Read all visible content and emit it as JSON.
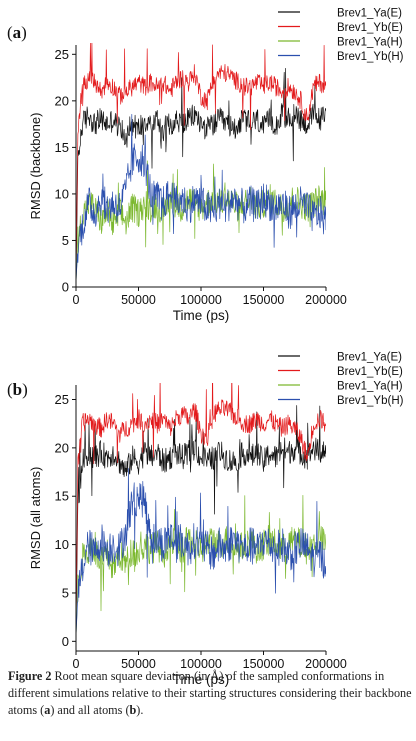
{
  "chart_data": [
    {
      "type": "line",
      "panel_label": "a",
      "title": "",
      "xlabel": "Time (ps)",
      "ylabel": "RMSD (backbone)",
      "xlim": [
        0,
        200000
      ],
      "ylim": [
        0,
        26
      ],
      "xticks": [
        0,
        50000,
        100000,
        150000,
        200000
      ],
      "yticks": [
        0,
        5,
        10,
        15,
        20,
        25
      ],
      "legend_position": "top-right",
      "grid": false,
      "series": [
        {
          "name": "Brev1_Ya(E)",
          "color": "#111111",
          "x": [
            0,
            1500,
            5000,
            10000,
            15000,
            20000,
            25000,
            30000,
            35000,
            40000,
            45000,
            50000,
            55000,
            60000,
            65000,
            70000,
            75000,
            80000,
            85000,
            90000,
            95000,
            100000,
            105000,
            110000,
            115000,
            120000,
            125000,
            130000,
            135000,
            140000,
            145000,
            150000,
            155000,
            160000,
            165000,
            170000,
            175000,
            180000,
            185000,
            190000,
            195000,
            200000
          ],
          "values": [
            1.0,
            13.5,
            17.5,
            18.5,
            17.5,
            18.0,
            17.5,
            18.0,
            17.0,
            16.0,
            17.5,
            17.0,
            18.0,
            17.5,
            18.0,
            17.0,
            17.5,
            18.0,
            17.5,
            18.0,
            18.5,
            17.5,
            17.0,
            17.5,
            18.0,
            17.5,
            17.0,
            17.5,
            18.0,
            17.5,
            18.0,
            17.0,
            18.0,
            17.5,
            18.5,
            18.0,
            18.5,
            18.0,
            17.5,
            18.5,
            18.0,
            18.5
          ]
        },
        {
          "name": "Brev1_Yb(E)",
          "color": "#e31a1c",
          "x": [
            0,
            1500,
            5000,
            10000,
            15000,
            20000,
            25000,
            30000,
            35000,
            40000,
            45000,
            50000,
            55000,
            60000,
            65000,
            70000,
            75000,
            80000,
            85000,
            90000,
            95000,
            100000,
            105000,
            110000,
            115000,
            120000,
            125000,
            130000,
            135000,
            140000,
            145000,
            150000,
            155000,
            160000,
            165000,
            170000,
            175000,
            180000,
            185000,
            190000,
            195000,
            200000
          ],
          "values": [
            1.0,
            17.0,
            21.5,
            22.5,
            22.0,
            21.0,
            22.0,
            21.5,
            20.5,
            21.0,
            21.5,
            22.0,
            21.5,
            22.0,
            21.5,
            22.0,
            21.0,
            22.0,
            22.5,
            22.0,
            23.0,
            20.5,
            20.0,
            22.5,
            23.0,
            23.0,
            22.5,
            22.0,
            21.5,
            21.5,
            22.0,
            21.5,
            22.0,
            21.5,
            21.0,
            21.5,
            21.0,
            20.0,
            18.0,
            21.5,
            22.0,
            21.5
          ]
        },
        {
          "name": "Brev1_Ya(H)",
          "color": "#7cb82f",
          "x": [
            0,
            1500,
            5000,
            10000,
            15000,
            20000,
            25000,
            30000,
            35000,
            40000,
            45000,
            50000,
            55000,
            60000,
            65000,
            70000,
            75000,
            80000,
            85000,
            90000,
            95000,
            100000,
            105000,
            110000,
            115000,
            120000,
            125000,
            130000,
            135000,
            140000,
            145000,
            150000,
            155000,
            160000,
            165000,
            170000,
            175000,
            180000,
            185000,
            190000,
            195000,
            200000
          ],
          "values": [
            0.5,
            5.0,
            7.5,
            9.0,
            8.5,
            7.0,
            8.0,
            6.5,
            8.0,
            7.0,
            8.5,
            8.0,
            9.0,
            8.5,
            9.0,
            8.0,
            9.5,
            9.0,
            8.5,
            9.5,
            9.0,
            8.5,
            9.0,
            9.5,
            9.0,
            9.5,
            9.0,
            8.5,
            9.0,
            9.5,
            8.5,
            9.0,
            9.5,
            9.0,
            8.5,
            9.0,
            9.5,
            9.0,
            8.5,
            9.0,
            9.5,
            9.0
          ]
        },
        {
          "name": "Brev1_Yb(H)",
          "color": "#2b4fae",
          "x": [
            0,
            1500,
            5000,
            10000,
            15000,
            20000,
            25000,
            30000,
            35000,
            40000,
            45000,
            50000,
            55000,
            60000,
            65000,
            70000,
            75000,
            80000,
            85000,
            90000,
            95000,
            100000,
            105000,
            110000,
            115000,
            120000,
            125000,
            130000,
            135000,
            140000,
            145000,
            150000,
            155000,
            160000,
            165000,
            170000,
            175000,
            180000,
            185000,
            190000,
            195000,
            200000
          ],
          "values": [
            0.5,
            4.5,
            6.5,
            9.0,
            8.0,
            9.5,
            8.5,
            9.0,
            8.5,
            10.5,
            13.5,
            14.0,
            13.5,
            10.0,
            9.5,
            9.0,
            10.0,
            9.0,
            9.5,
            8.5,
            9.5,
            9.0,
            8.5,
            8.0,
            9.0,
            8.5,
            9.5,
            9.0,
            8.5,
            9.0,
            8.5,
            9.5,
            9.0,
            8.5,
            9.0,
            8.0,
            8.5,
            9.0,
            8.5,
            7.5,
            8.0,
            7.0
          ]
        }
      ]
    },
    {
      "type": "line",
      "panel_label": "b",
      "title": "",
      "xlabel": "Time (ps)",
      "ylabel": "RMSD (all atoms)",
      "xlim": [
        0,
        200000
      ],
      "ylim": [
        -1,
        26.5
      ],
      "xticks": [
        0,
        50000,
        100000,
        150000,
        200000
      ],
      "yticks": [
        0,
        5,
        10,
        15,
        20,
        25
      ],
      "legend_position": "top-right",
      "grid": false,
      "series": [
        {
          "name": "Brev1_Ya(E)",
          "color": "#111111",
          "x": [
            0,
            1500,
            5000,
            10000,
            15000,
            20000,
            25000,
            30000,
            35000,
            40000,
            45000,
            50000,
            55000,
            60000,
            65000,
            70000,
            75000,
            80000,
            85000,
            90000,
            95000,
            100000,
            105000,
            110000,
            115000,
            120000,
            125000,
            130000,
            135000,
            140000,
            145000,
            150000,
            155000,
            160000,
            165000,
            170000,
            175000,
            180000,
            185000,
            190000,
            195000,
            200000
          ],
          "values": [
            1.5,
            14.0,
            18.5,
            19.5,
            19.0,
            19.5,
            19.0,
            19.5,
            18.5,
            17.5,
            19.0,
            18.5,
            19.5,
            19.0,
            19.5,
            18.5,
            19.0,
            19.5,
            19.0,
            19.5,
            20.0,
            19.0,
            18.5,
            19.0,
            19.5,
            19.0,
            18.5,
            19.0,
            19.5,
            19.0,
            19.5,
            18.5,
            19.5,
            19.0,
            20.0,
            19.5,
            20.0,
            19.5,
            19.0,
            20.0,
            19.5,
            20.0
          ]
        },
        {
          "name": "Brev1_Yb(E)",
          "color": "#e31a1c",
          "x": [
            0,
            1500,
            5000,
            10000,
            15000,
            20000,
            25000,
            30000,
            35000,
            40000,
            45000,
            50000,
            55000,
            60000,
            65000,
            70000,
            75000,
            80000,
            85000,
            90000,
            95000,
            100000,
            105000,
            110000,
            115000,
            120000,
            125000,
            130000,
            135000,
            140000,
            145000,
            150000,
            155000,
            160000,
            165000,
            170000,
            175000,
            180000,
            185000,
            190000,
            195000,
            200000
          ],
          "values": [
            1.5,
            18.0,
            22.5,
            23.0,
            22.5,
            22.0,
            23.0,
            22.5,
            21.5,
            22.0,
            22.5,
            23.0,
            22.5,
            23.0,
            22.5,
            23.0,
            22.0,
            23.0,
            23.5,
            23.0,
            24.0,
            21.5,
            21.0,
            23.5,
            24.0,
            24.0,
            23.5,
            23.0,
            22.5,
            22.5,
            23.0,
            22.5,
            23.0,
            22.5,
            22.0,
            22.5,
            22.0,
            21.0,
            19.0,
            22.5,
            23.0,
            22.5
          ]
        },
        {
          "name": "Brev1_Ya(H)",
          "color": "#7cb82f",
          "x": [
            0,
            1500,
            5000,
            10000,
            15000,
            20000,
            25000,
            30000,
            35000,
            40000,
            45000,
            50000,
            55000,
            60000,
            65000,
            70000,
            75000,
            80000,
            85000,
            90000,
            95000,
            100000,
            105000,
            110000,
            115000,
            120000,
            125000,
            130000,
            135000,
            140000,
            145000,
            150000,
            155000,
            160000,
            165000,
            170000,
            175000,
            180000,
            185000,
            190000,
            195000,
            200000
          ],
          "values": [
            0.5,
            5.5,
            8.5,
            10.0,
            9.5,
            8.0,
            9.0,
            7.5,
            9.0,
            8.0,
            9.5,
            9.0,
            10.0,
            9.5,
            10.0,
            9.0,
            10.5,
            10.0,
            9.5,
            10.5,
            10.0,
            9.5,
            10.0,
            10.5,
            10.0,
            10.5,
            10.0,
            9.5,
            10.0,
            10.5,
            9.5,
            10.0,
            10.5,
            10.0,
            9.5,
            10.0,
            10.5,
            10.0,
            9.5,
            10.0,
            10.5,
            10.0
          ]
        },
        {
          "name": "Brev1_Yb(H)",
          "color": "#2b4fae",
          "x": [
            0,
            1500,
            5000,
            10000,
            15000,
            20000,
            25000,
            30000,
            35000,
            40000,
            45000,
            50000,
            55000,
            60000,
            65000,
            70000,
            75000,
            80000,
            85000,
            90000,
            95000,
            100000,
            105000,
            110000,
            115000,
            120000,
            125000,
            130000,
            135000,
            140000,
            145000,
            150000,
            155000,
            160000,
            165000,
            170000,
            175000,
            180000,
            185000,
            190000,
            195000,
            200000
          ],
          "values": [
            0.5,
            5.0,
            7.5,
            10.0,
            9.0,
            10.5,
            9.5,
            10.0,
            9.5,
            11.5,
            14.5,
            15.0,
            14.5,
            11.0,
            10.5,
            10.0,
            11.0,
            10.0,
            10.5,
            9.5,
            10.5,
            10.0,
            9.5,
            9.0,
            10.0,
            9.5,
            10.5,
            10.0,
            9.5,
            10.0,
            9.5,
            10.5,
            10.0,
            9.5,
            10.0,
            9.0,
            9.5,
            10.0,
            9.5,
            8.5,
            9.0,
            8.0
          ]
        }
      ]
    }
  ],
  "caption": {
    "lead": "Figure 2",
    "text_1": "  Root mean square deviation (in Å) of the sampled conformations in different simulations relative to their starting structures considering their backbone atoms (",
    "bold_a": "a",
    "text_2": ") and all atoms (",
    "bold_b": "b",
    "text_3": ")."
  }
}
